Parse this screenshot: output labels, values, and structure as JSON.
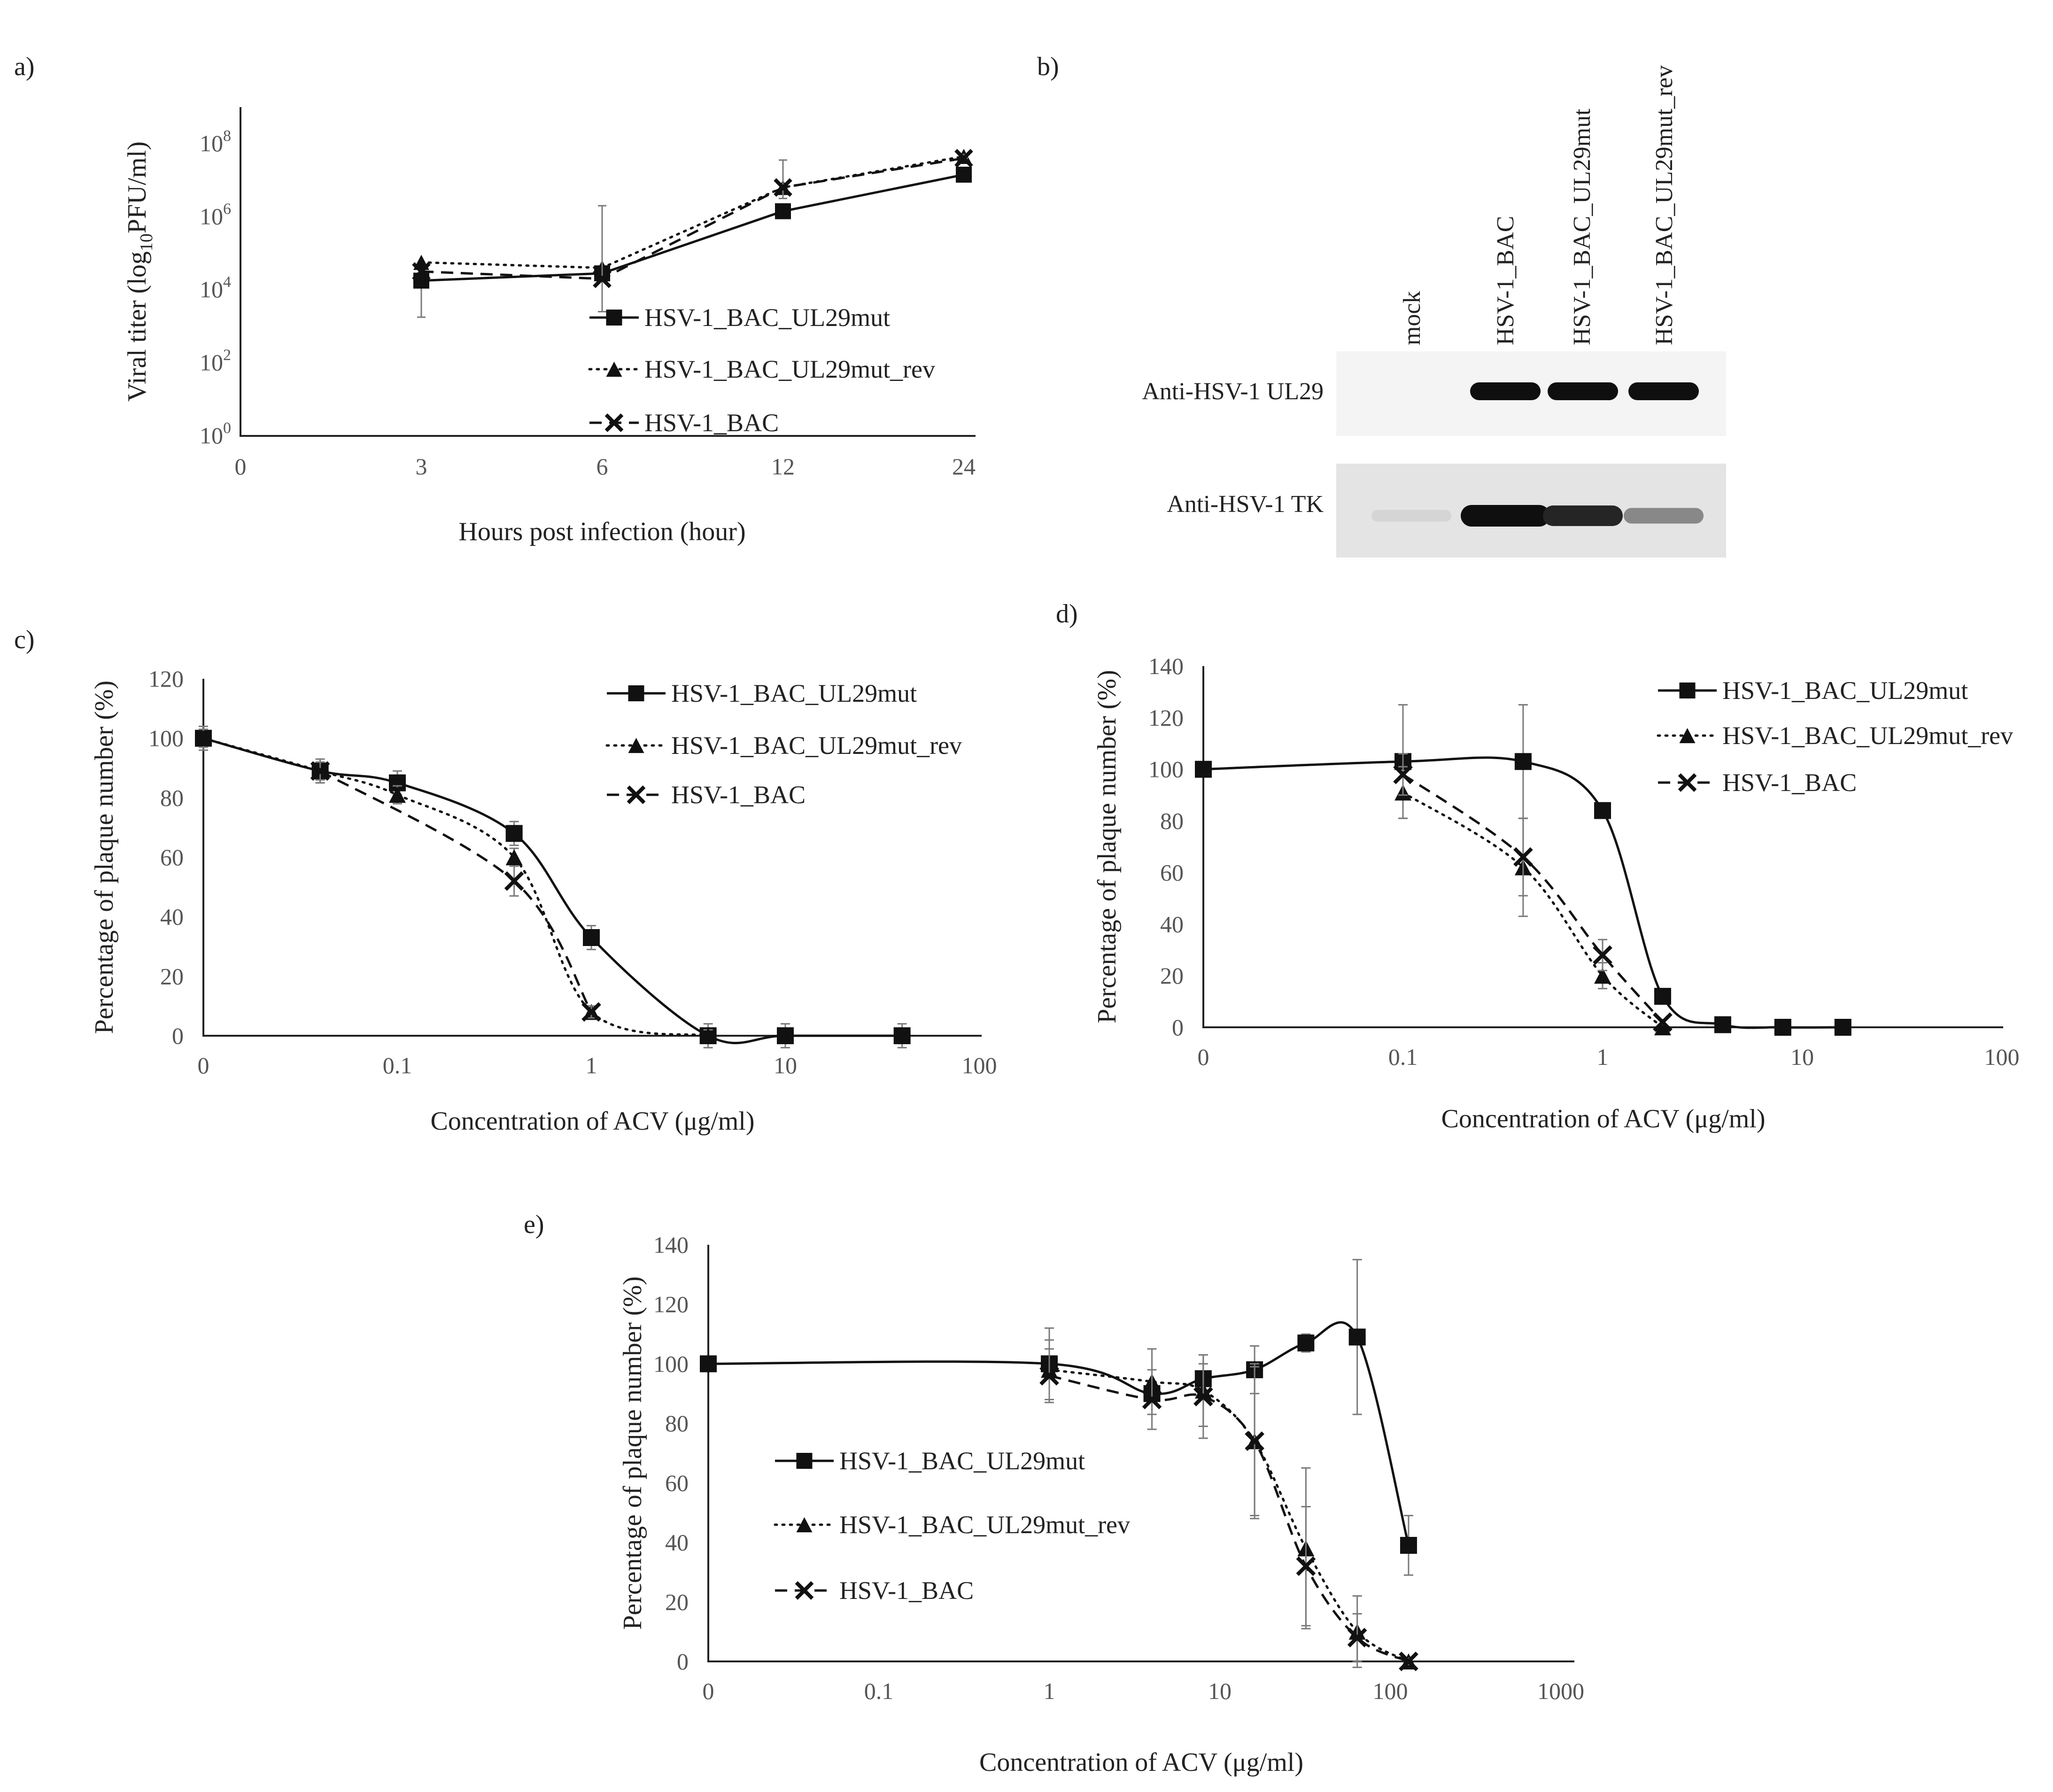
{
  "panels": {
    "a": "a)",
    "b": "b)",
    "c": "c)",
    "d": "d)",
    "e": "e)"
  },
  "colors": {
    "line": "#111111",
    "error_bar": "#7a7a7a",
    "tick_text": "#555555"
  },
  "western_blot": {
    "lanes": [
      "mock",
      "HSV-1_BAC",
      "HSV-1_BAC_UL29mut",
      "HSV-1_BAC_UL29mut_rev"
    ],
    "rows": [
      {
        "label": "Anti-HSV-1 UL29",
        "bands": [
          0,
          1,
          1,
          1
        ]
      },
      {
        "label": "Anti-HSV-1 TK",
        "bands": [
          0.1,
          1,
          0.9,
          0.45
        ]
      }
    ]
  },
  "chart_data": [
    {
      "id": "a",
      "type": "line",
      "title": "",
      "xlabel": "Hours post infection (hour)",
      "ylabel_parts": {
        "pre": "Viral titer (log",
        "sub": "10",
        "post": "PFU/ml)"
      },
      "yscale": "log",
      "ylim": [
        0,
        9
      ],
      "x_categories": [
        "0",
        "3",
        "6",
        "12",
        "24"
      ],
      "y_ticks": [
        {
          "base": "10",
          "exp": "0",
          "value": 0
        },
        {
          "base": "10",
          "exp": "2",
          "value": 2
        },
        {
          "base": "10",
          "exp": "4",
          "value": 4
        },
        {
          "base": "10",
          "exp": "6",
          "value": 6
        },
        {
          "base": "10",
          "exp": "8",
          "value": 8
        }
      ],
      "legend_position": "center-right",
      "series": [
        {
          "name": "HSV-1_BAC_UL29mut",
          "marker": "square",
          "dash": "solid",
          "x": [
            3,
            6,
            12,
            24
          ],
          "log10_titer": [
            4.25,
            4.45,
            6.15,
            7.15
          ],
          "err_low": [
            1.0,
            0,
            0,
            0
          ],
          "err_high": [
            0,
            0,
            0,
            0
          ]
        },
        {
          "name": "HSV-1_BAC_UL29mut_rev",
          "marker": "triangle",
          "dash": "dotted",
          "x": [
            3,
            6,
            12,
            24
          ],
          "log10_titer": [
            4.75,
            4.6,
            6.8,
            7.65
          ],
          "err_low": [
            0,
            0,
            0,
            0
          ],
          "err_high": [
            0,
            0,
            0,
            0
          ]
        },
        {
          "name": "HSV-1_BAC",
          "marker": "x",
          "dash": "dashed",
          "x": [
            3,
            6,
            12,
            24
          ],
          "log10_titer": [
            4.5,
            4.3,
            6.8,
            7.6
          ],
          "err_low": [
            0,
            0.9,
            0.3,
            0
          ],
          "err_high": [
            0,
            2.0,
            0.75,
            0.1
          ]
        }
      ]
    },
    {
      "id": "c",
      "type": "line",
      "title": "",
      "xlabel": "Concentration of ACV (μg/ml)",
      "ylabel": "Percentage of plaque number (%)",
      "xscale": "log",
      "x_ticks": [
        "0",
        "0.1",
        "1",
        "10",
        "100"
      ],
      "ylim": [
        0,
        120
      ],
      "y_ticks": [
        0,
        20,
        40,
        60,
        80,
        100,
        120
      ],
      "legend_position": "top-right",
      "series": [
        {
          "name": "HSV-1_BAC_UL29mut",
          "marker": "square",
          "dash": "solid",
          "x": [
            0.01,
            0.04,
            0.1,
            0.4,
            1,
            4,
            10,
            40
          ],
          "values": [
            100,
            89,
            85,
            68,
            33,
            0,
            0,
            0
          ],
          "err": [
            4,
            4,
            4,
            4,
            4,
            4,
            4,
            4
          ]
        },
        {
          "name": "HSV-1_BAC_UL29mut_rev",
          "marker": "triangle",
          "dash": "dotted",
          "x": [
            0.01,
            0.04,
            0.1,
            0.4,
            1,
            4
          ],
          "values": [
            100,
            89,
            81,
            60,
            8,
            0
          ],
          "err": [
            3,
            3,
            3,
            3,
            2,
            2
          ]
        },
        {
          "name": "HSV-1_BAC",
          "marker": "x",
          "dash": "dashed",
          "x": [
            0.04,
            0.4,
            1
          ],
          "values": [
            89,
            52,
            8
          ],
          "err": [
            4,
            5,
            2
          ]
        }
      ]
    },
    {
      "id": "d",
      "type": "line",
      "title": "",
      "xlabel": "Concentration of ACV (μg/ml)",
      "ylabel": "Percentage of plaque number (%)",
      "xscale": "log",
      "x_ticks": [
        "0",
        "0.1",
        "1",
        "10",
        "100"
      ],
      "ylim": [
        0,
        140
      ],
      "y_ticks": [
        0,
        20,
        40,
        60,
        80,
        100,
        120,
        140
      ],
      "legend_position": "top-right",
      "series": [
        {
          "name": "HSV-1_BAC_UL29mut",
          "marker": "square",
          "dash": "solid",
          "x": [
            0.01,
            0.1,
            0.4,
            1,
            2,
            4,
            8,
            16
          ],
          "values": [
            100,
            103,
            103,
            84,
            12,
            1,
            0,
            0
          ],
          "err": [
            2,
            22,
            22,
            2,
            2,
            1,
            1,
            1
          ]
        },
        {
          "name": "HSV-1_BAC_UL29mut_rev",
          "marker": "triangle",
          "dash": "dotted",
          "x": [
            0.1,
            0.4,
            1,
            2
          ],
          "values": [
            91,
            62,
            20,
            0
          ],
          "err": [
            10,
            19,
            5,
            1
          ]
        },
        {
          "name": "HSV-1_BAC",
          "marker": "x",
          "dash": "dashed",
          "x": [
            0.1,
            0.4,
            1,
            2
          ],
          "values": [
            98,
            66,
            28,
            2
          ],
          "err": [
            8,
            15,
            6,
            1
          ]
        }
      ]
    },
    {
      "id": "e",
      "type": "line",
      "title": "",
      "xlabel": "Concentration of ACV (μg/ml)",
      "ylabel": "Percentage of plaque number (%)",
      "xscale": "log",
      "x_ticks": [
        "0",
        "0.1",
        "1",
        "10",
        "100",
        "1000"
      ],
      "ylim": [
        0,
        140
      ],
      "y_ticks": [
        0,
        20,
        40,
        60,
        80,
        100,
        120,
        140
      ],
      "legend_position": "center-left",
      "series": [
        {
          "name": "HSV-1_BAC_UL29mut",
          "marker": "square",
          "dash": "solid",
          "x": [
            0.01,
            1,
            4,
            8,
            16,
            32,
            64,
            128
          ],
          "values": [
            100,
            100,
            90,
            95,
            98,
            107,
            109,
            39
          ],
          "err": [
            2,
            12,
            3,
            5,
            8,
            3,
            26,
            10
          ]
        },
        {
          "name": "HSV-1_BAC_UL29mut_rev",
          "marker": "triangle",
          "dash": "dotted",
          "x": [
            1,
            4,
            8,
            16,
            32,
            64,
            128
          ],
          "values": [
            98,
            94,
            91,
            74,
            38,
            10,
            0
          ],
          "err": [
            10,
            11,
            12,
            26,
            27,
            12,
            1
          ]
        },
        {
          "name": "HSV-1_BAC",
          "marker": "x",
          "dash": "dashed",
          "x": [
            1,
            4,
            8,
            16,
            32,
            64,
            128
          ],
          "values": [
            96,
            88,
            89,
            74,
            32,
            8,
            0
          ],
          "err": [
            9,
            10,
            14,
            25,
            20,
            8,
            1
          ]
        }
      ]
    }
  ]
}
